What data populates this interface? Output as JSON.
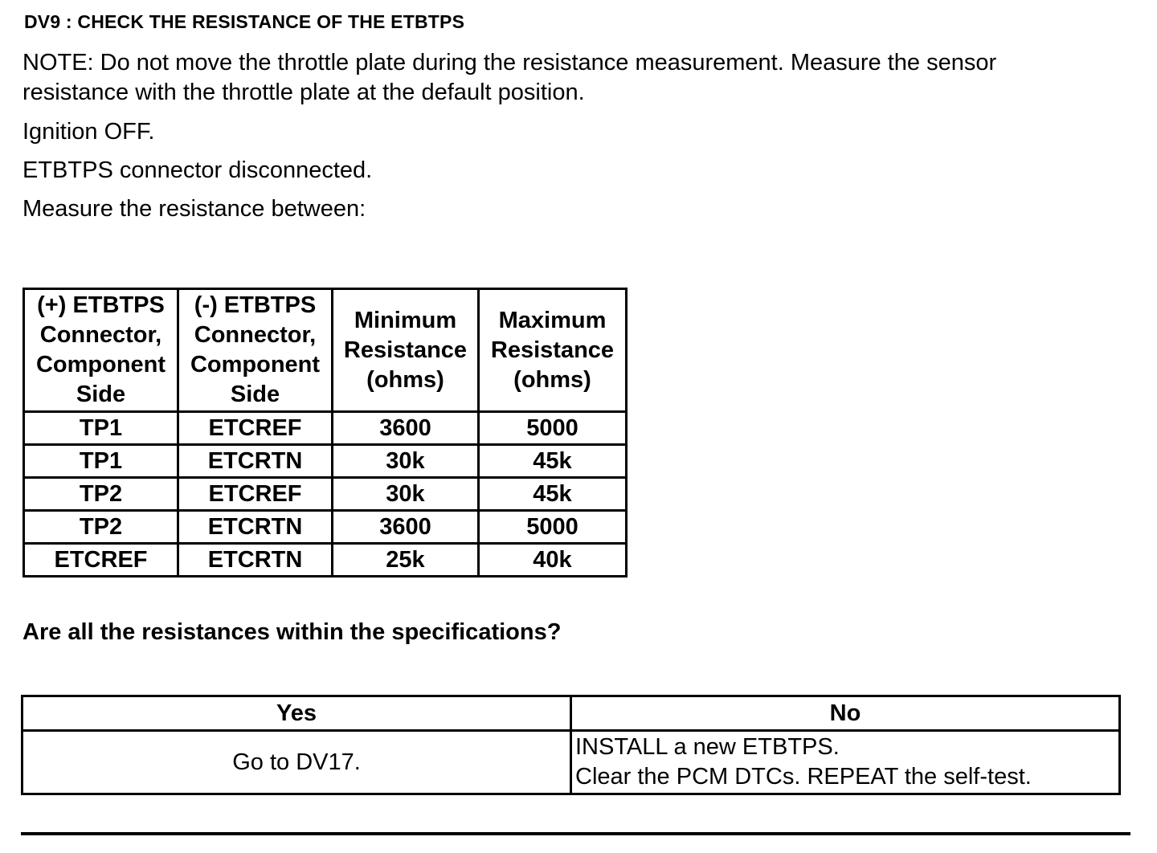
{
  "title": "DV9 : CHECK THE RESISTANCE OF THE ETBTPS",
  "note": "NOTE: Do not move the throttle plate during the resistance measurement. Measure the sensor resistance with the throttle plate at the default position.",
  "steps": [
    "Ignition OFF.",
    "ETBTPS connector disconnected.",
    "Measure the resistance between:"
  ],
  "spec_table": {
    "headers": [
      [
        "(+) ETBTPS",
        "Connector,",
        "Component",
        "Side"
      ],
      [
        "(-) ETBTPS",
        "Connector,",
        "Component",
        "Side"
      ],
      [
        "Minimum",
        "Resistance",
        "(ohms)"
      ],
      [
        "Maximum",
        "Resistance",
        "(ohms)"
      ]
    ],
    "rows": [
      [
        "TP1",
        "ETCREF",
        "3600",
        "5000"
      ],
      [
        "TP1",
        "ETCRTN",
        "30k",
        "45k"
      ],
      [
        "TP2",
        "ETCREF",
        "30k",
        "45k"
      ],
      [
        "TP2",
        "ETCRTN",
        "3600",
        "5000"
      ],
      [
        "ETCREF",
        "ETCRTN",
        "25k",
        "40k"
      ]
    ]
  },
  "question": "Are all the resistances within the specifications?",
  "result_table": {
    "yes_header": "Yes",
    "no_header": "No",
    "yes_action": "Go to DV17.",
    "no_actions": [
      "INSTALL a new ETBTPS.",
      "Clear the PCM DTCs. REPEAT the self-test."
    ]
  }
}
